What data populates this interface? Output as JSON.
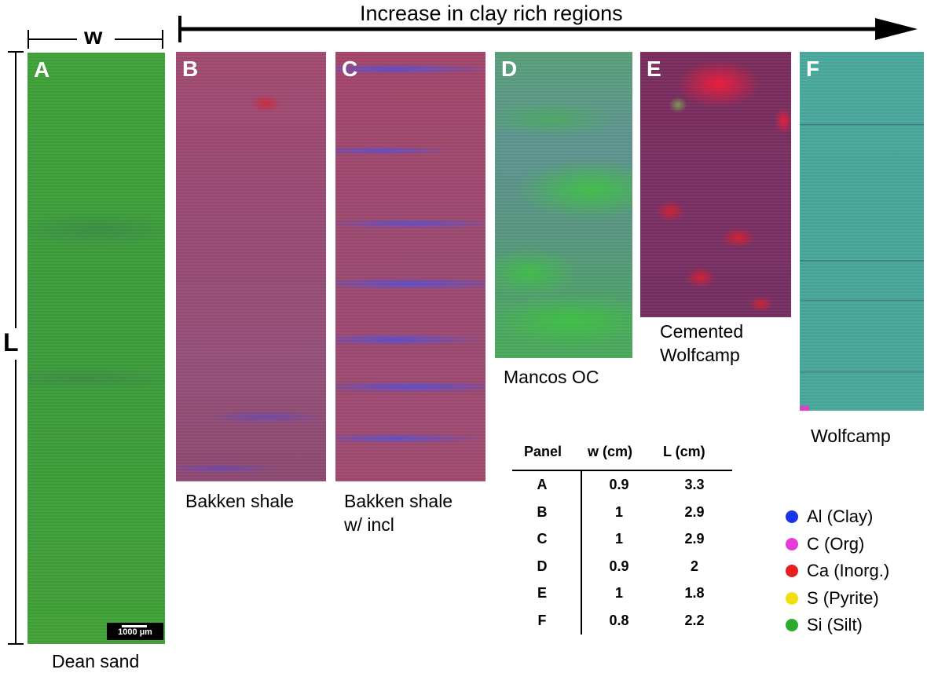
{
  "header": {
    "trend_label": "Increase in clay rich regions"
  },
  "dimensions": {
    "width_label": "w",
    "length_label": "L"
  },
  "panels": [
    {
      "letter": "A",
      "caption": "Dean sand",
      "base_color": "#3ea03a"
    },
    {
      "letter": "B",
      "caption": "Bakken shale",
      "base_color": "#9e4a6c"
    },
    {
      "letter": "C",
      "caption": "Bakken shale w/ incl",
      "caption_line1": "Bakken shale",
      "caption_line2": "w/ incl",
      "base_color": "#a2476a"
    },
    {
      "letter": "D",
      "caption": "Mancos OC",
      "base_color": "#5c9a86"
    },
    {
      "letter": "E",
      "caption": "Cemented Wolfcamp",
      "caption_line1": "Cemented",
      "caption_line2": "Wolfcamp",
      "base_color": "#7a2e60"
    },
    {
      "letter": "F",
      "caption": "Wolfcamp",
      "base_color": "#4aa89c"
    }
  ],
  "scale_bar": {
    "label": "1000 µm"
  },
  "table": {
    "headers": [
      "Panel",
      "w (cm)",
      "L (cm)"
    ],
    "rows": [
      [
        "A",
        "0.9",
        "3.3"
      ],
      [
        "B",
        "1",
        "2.9"
      ],
      [
        "C",
        "1",
        "2.9"
      ],
      [
        "D",
        "0.9",
        "2"
      ],
      [
        "E",
        "1",
        "1.8"
      ],
      [
        "F",
        "0.8",
        "2.2"
      ]
    ]
  },
  "legend": [
    {
      "label": "Al (Clay)",
      "color": "#1a35e8"
    },
    {
      "label": "C (Org)",
      "color": "#e83ad6"
    },
    {
      "label": "Ca (Inorg.)",
      "color": "#e81e1e"
    },
    {
      "label": "S (Pyrite)",
      "color": "#f0e010"
    },
    {
      "label": "Si (Silt)",
      "color": "#2ea82e"
    }
  ]
}
